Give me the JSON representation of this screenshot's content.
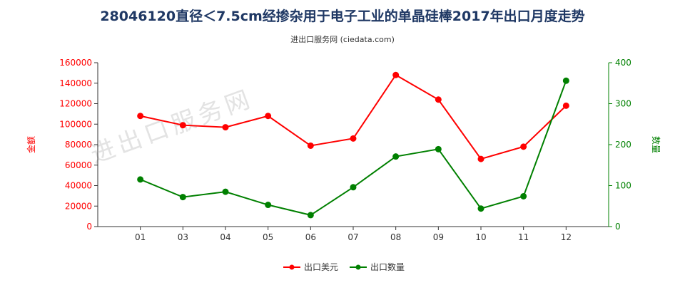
{
  "title": "28046120直径＜7.5cm经掺杂用于电子工业的单晶硅棒2017年出口月度走势",
  "subtitle": "进出口服务网 (ciedata.com)",
  "watermark": "进出口服务网",
  "colors": {
    "value": "#ff0000",
    "quantity": "#008000",
    "axis": "#333333",
    "grid": "#dddddd",
    "title": "#1f3864"
  },
  "chart_data": {
    "type": "line",
    "categories": [
      "01",
      "03",
      "04",
      "05",
      "06",
      "07",
      "08",
      "09",
      "10",
      "11",
      "12"
    ],
    "y_left": {
      "label": "金额",
      "ticks": [
        "0",
        "20000",
        "40000",
        "60000",
        "80000",
        "100000",
        "120000",
        "140000",
        "160000"
      ],
      "range": [
        0,
        160000
      ],
      "color": "#ff0000"
    },
    "y_right": {
      "label": "数量",
      "ticks": [
        "0",
        "100",
        "200",
        "300",
        "400"
      ],
      "range": [
        0,
        400
      ],
      "color": "#008000"
    },
    "series": [
      {
        "name": "出口美元",
        "axis": "left",
        "color": "#ff0000",
        "values": [
          108000,
          99000,
          97000,
          108000,
          79000,
          86000,
          148000,
          124000,
          66000,
          78000,
          118000
        ]
      },
      {
        "name": "出口数量",
        "axis": "right",
        "color": "#008000",
        "values": [
          115,
          72,
          85,
          53,
          28,
          96,
          171,
          189,
          44,
          74,
          356
        ]
      }
    ],
    "legend_position": "bottom-center",
    "grid": false
  }
}
